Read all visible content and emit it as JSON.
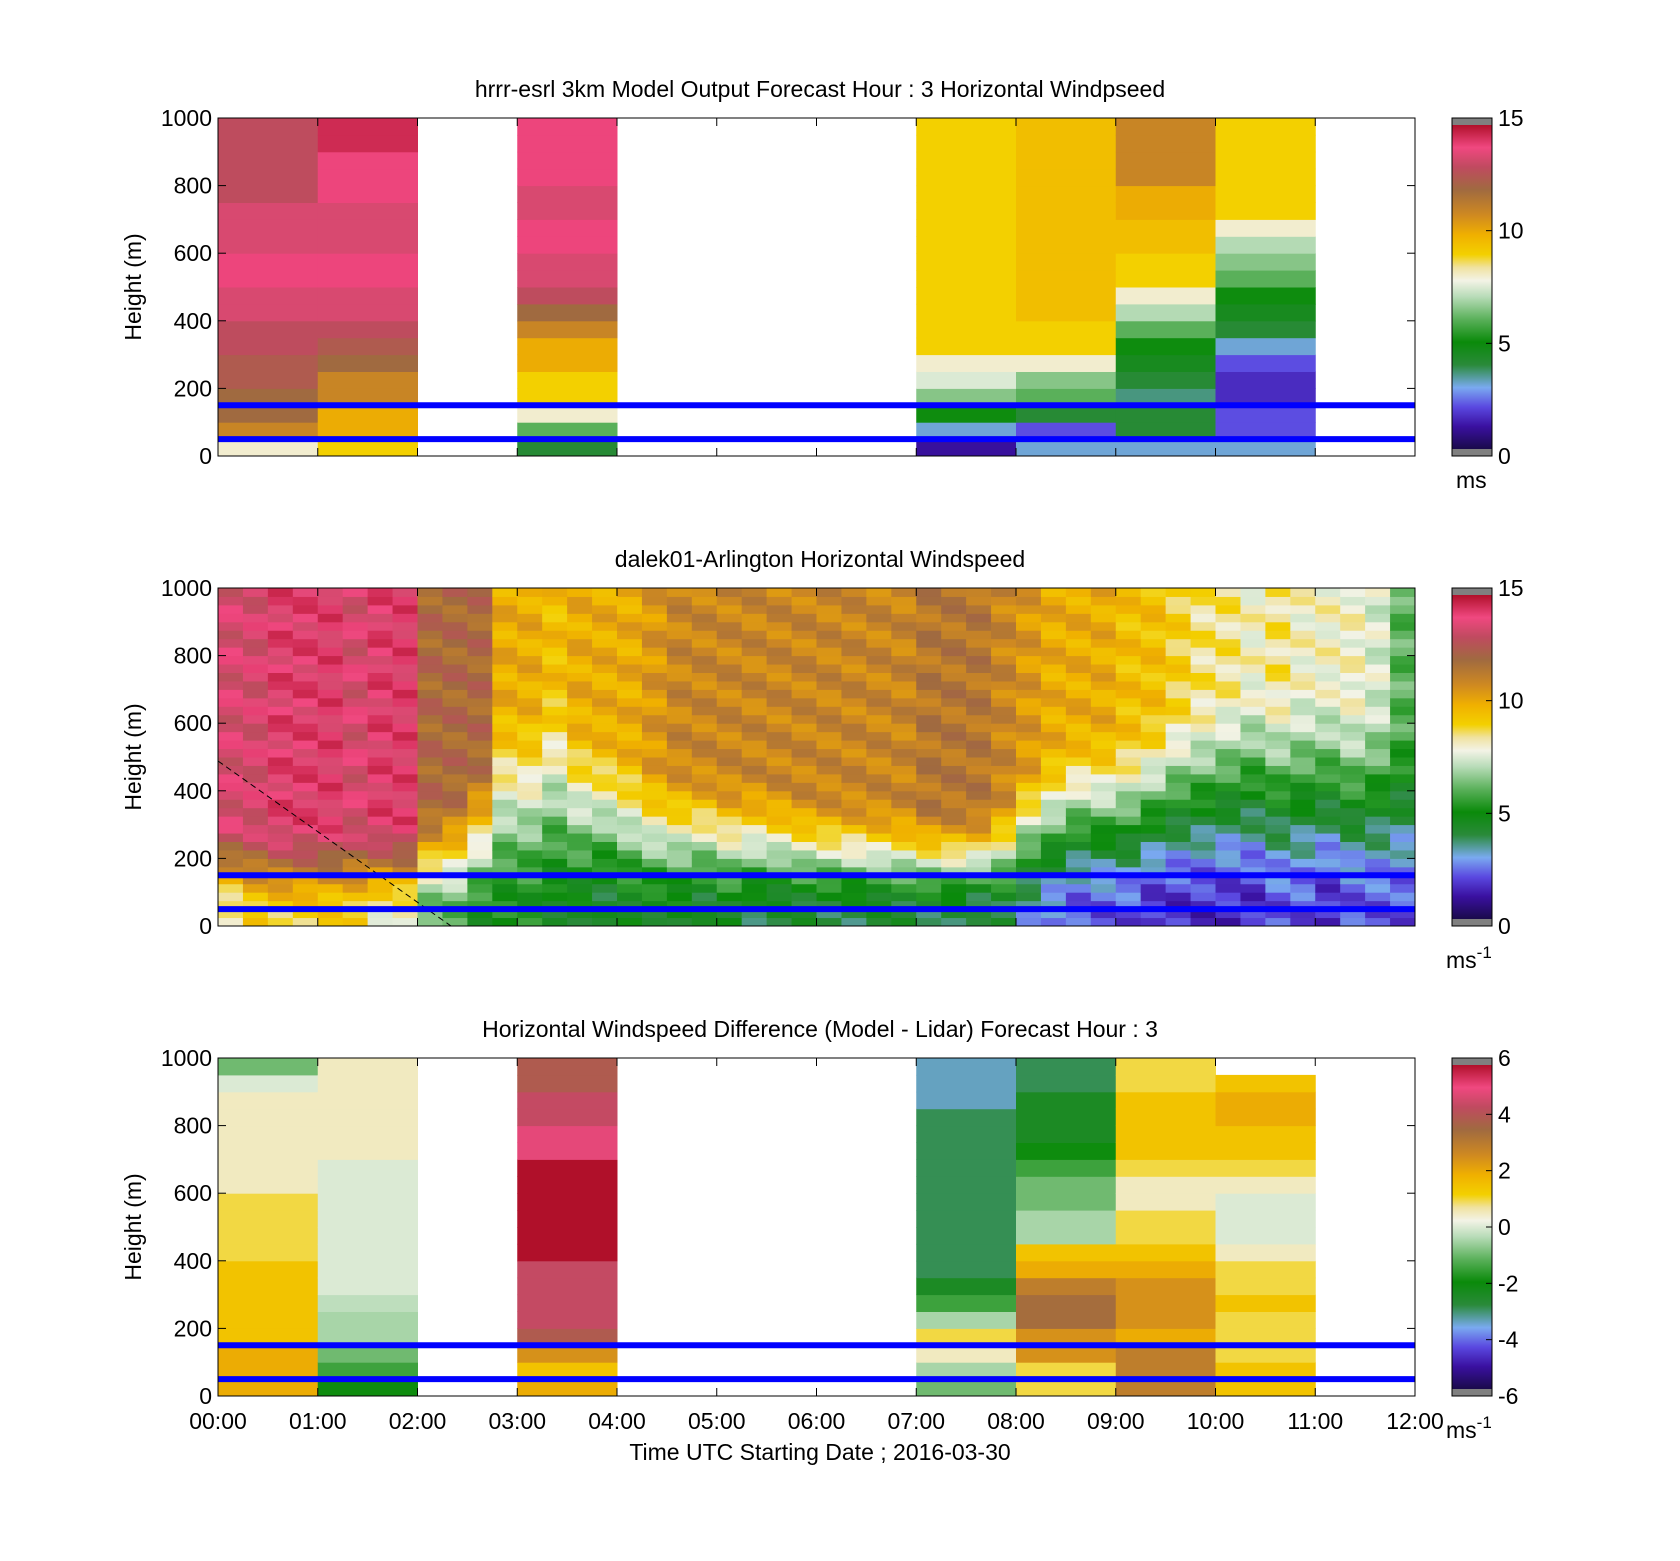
{
  "figure": {
    "xlabel": "Time UTC  Starting Date ; 2016-03-30",
    "time_ticks": [
      "00:00",
      "01:00",
      "02:00",
      "03:00",
      "04:00",
      "05:00",
      "06:00",
      "07:00",
      "08:00",
      "09:00",
      "10:00",
      "11:00",
      "12:00"
    ],
    "ylabel": "Height (m)",
    "height_ticks": [
      "0",
      "200",
      "400",
      "600",
      "800",
      "1000"
    ]
  },
  "colors": {
    "overlay_line": "#0000ff",
    "out_of_range": "#808080",
    "panel_bg": "#ffffff"
  },
  "chart_data": [
    {
      "type": "heatmap",
      "title": "hrrr-esrl 3km Model Output   Forecast Hour : 3 Horizontal Windpseed",
      "xlabel": "",
      "ylabel": "Height (m)",
      "x": [
        0,
        1,
        2,
        3,
        4,
        5,
        6,
        7,
        8,
        9,
        10,
        11
      ],
      "x_unit": "hour UTC",
      "y": [
        25,
        75,
        125,
        175,
        225,
        275,
        325,
        375,
        425,
        475,
        525,
        575,
        625,
        675,
        725,
        775,
        825,
        875,
        925,
        975
      ],
      "z_unit": "m s-1",
      "xlim": [
        0,
        12
      ],
      "ylim": [
        0,
        1000
      ],
      "colorbar": {
        "clim": [
          0,
          15
        ],
        "ticks": [
          "0",
          "5",
          "10",
          "15"
        ],
        "label": "ms"
      },
      "reference_lines": [
        50,
        150
      ],
      "columns": [
        {
          "x": 0,
          "values": [
            8,
            11,
            12,
            12,
            12.5,
            12.5,
            13,
            13,
            13.5,
            13.5,
            14,
            14,
            13.5,
            13.5,
            13.5,
            13,
            13,
            13,
            13,
            13
          ]
        },
        {
          "x": 1,
          "values": [
            9,
            10,
            10,
            11,
            11,
            12,
            12.5,
            13,
            13.5,
            13.5,
            14,
            14,
            13.5,
            13.5,
            13.5,
            14,
            14,
            14,
            14.5,
            14.5
          ]
        },
        {
          "x": 2,
          "values": []
        },
        {
          "x": 3,
          "values": [
            4,
            6,
            8,
            9,
            9,
            10,
            10,
            11,
            12,
            13,
            13.5,
            13.5,
            14,
            14,
            13.5,
            13.5,
            14,
            14,
            14,
            14
          ]
        },
        {
          "x": 4,
          "values": []
        },
        {
          "x": 5,
          "values": []
        },
        {
          "x": 6,
          "values": []
        },
        {
          "x": 7,
          "values": [
            1,
            3,
            5,
            6.5,
            7.5,
            8,
            9,
            9,
            9,
            9,
            9,
            9,
            9,
            9,
            9,
            9,
            9,
            9,
            9,
            9
          ]
        },
        {
          "x": 8,
          "values": [
            3,
            2,
            4,
            6,
            6.5,
            8,
            9,
            9,
            9.5,
            9.5,
            9.5,
            9.5,
            9.5,
            9.5,
            9.5,
            9.5,
            9.5,
            9.5,
            9.5,
            9.5
          ]
        },
        {
          "x": 9,
          "values": [
            3,
            4,
            4,
            3.5,
            4,
            4.5,
            5,
            6,
            7,
            8,
            9,
            9,
            9.5,
            9.5,
            10,
            10,
            11,
            11,
            11,
            11
          ]
        },
        {
          "x": 10,
          "values": [
            3,
            2,
            2,
            1.5,
            1.5,
            2,
            3,
            4,
            4.5,
            5,
            6,
            6.5,
            7,
            8,
            9,
            9,
            9,
            9,
            9,
            9
          ]
        },
        {
          "x": 11,
          "values": []
        }
      ]
    },
    {
      "type": "heatmap",
      "title": "dalek01-Arlington  Horizontal Windspeed",
      "xlabel": "",
      "ylabel": "Height (m)",
      "x": [
        0.125,
        0.375,
        0.625,
        0.875,
        1.125,
        1.375,
        1.625,
        1.875,
        2.125,
        2.375,
        2.625,
        2.875,
        3.125,
        3.375,
        3.625,
        3.875,
        4.125,
        4.375,
        4.625,
        4.875,
        5.125,
        5.375,
        5.625,
        5.875,
        6.125,
        6.375,
        6.625,
        6.875,
        7.125,
        7.375,
        7.625,
        7.875,
        8.125,
        8.375,
        8.625,
        8.875,
        9.125,
        9.375,
        9.625,
        9.875,
        10.125,
        10.375,
        10.625,
        10.875,
        11.125,
        11.375,
        11.625,
        11.875
      ],
      "x_unit": "hour UTC",
      "y_range": [
        0,
        1000
      ],
      "z_unit": "m s-1",
      "xlim": [
        0,
        12
      ],
      "ylim": [
        0,
        1000
      ],
      "colorbar": {
        "clim": [
          0,
          15
        ],
        "ticks": [
          "0",
          "5",
          "10",
          "15"
        ],
        "label": "ms",
        "label_superscript": "-1"
      },
      "reference_lines": [
        50,
        150
      ],
      "profiles": [
        {
          "x": 0.125,
          "surface": 8,
          "top": 13.5,
          "transition_m": 150
        },
        {
          "x": 0.375,
          "surface": 9,
          "top": 13.5,
          "transition_m": 150
        },
        {
          "x": 0.625,
          "surface": 9,
          "top": 14,
          "transition_m": 150
        },
        {
          "x": 0.875,
          "surface": 9,
          "top": 14,
          "transition_m": 150
        },
        {
          "x": 1.125,
          "surface": 9,
          "top": 14,
          "transition_m": 150
        },
        {
          "x": 1.375,
          "surface": 9,
          "top": 13.5,
          "transition_m": 150
        },
        {
          "x": 1.625,
          "surface": 8,
          "top": 14,
          "transition_m": 150
        },
        {
          "x": 1.875,
          "surface": 8,
          "top": 14,
          "transition_m": 150
        },
        {
          "x": 2.125,
          "surface": 6,
          "top": 12,
          "transition_m": 200
        },
        {
          "x": 2.375,
          "surface": 6,
          "top": 12,
          "transition_m": 250
        },
        {
          "x": 2.625,
          "surface": 5,
          "top": 12,
          "transition_m": 350
        },
        {
          "x": 2.875,
          "surface": 5,
          "top": 10,
          "transition_m": 550
        },
        {
          "x": 3.125,
          "surface": 5,
          "top": 10,
          "transition_m": 550
        },
        {
          "x": 3.375,
          "surface": 4.5,
          "top": 9.5,
          "transition_m": 600
        },
        {
          "x": 3.625,
          "surface": 4.5,
          "top": 10,
          "transition_m": 500
        },
        {
          "x": 3.875,
          "surface": 4,
          "top": 10,
          "transition_m": 450
        },
        {
          "x": 4.125,
          "surface": 4.5,
          "top": 10,
          "transition_m": 400
        },
        {
          "x": 4.375,
          "surface": 4.5,
          "top": 10.5,
          "transition_m": 350
        },
        {
          "x": 4.625,
          "surface": 4.5,
          "top": 11,
          "transition_m": 350
        },
        {
          "x": 4.875,
          "surface": 4,
          "top": 11,
          "transition_m": 330
        },
        {
          "x": 5.125,
          "surface": 4.5,
          "top": 11,
          "transition_m": 300
        },
        {
          "x": 5.375,
          "surface": 4,
          "top": 11,
          "transition_m": 300
        },
        {
          "x": 5.625,
          "surface": 4,
          "top": 11,
          "transition_m": 280
        },
        {
          "x": 5.875,
          "surface": 4,
          "top": 11,
          "transition_m": 250
        },
        {
          "x": 6.125,
          "surface": 4,
          "top": 11,
          "transition_m": 240
        },
        {
          "x": 6.375,
          "surface": 4,
          "top": 11,
          "transition_m": 230
        },
        {
          "x": 6.625,
          "surface": 4,
          "top": 11,
          "transition_m": 220
        },
        {
          "x": 6.875,
          "surface": 4,
          "top": 11,
          "transition_m": 210
        },
        {
          "x": 7.125,
          "surface": 4,
          "top": 11.5,
          "transition_m": 200
        },
        {
          "x": 7.375,
          "surface": 4,
          "top": 11.5,
          "transition_m": 200
        },
        {
          "x": 7.625,
          "surface": 3.5,
          "top": 11.5,
          "transition_m": 200
        },
        {
          "x": 7.875,
          "surface": 4,
          "top": 11,
          "transition_m": 250
        },
        {
          "x": 8.125,
          "surface": 3,
          "top": 10.5,
          "transition_m": 350
        },
        {
          "x": 8.375,
          "surface": 2.5,
          "top": 10,
          "transition_m": 400
        },
        {
          "x": 8.625,
          "surface": 2,
          "top": 10,
          "transition_m": 450
        },
        {
          "x": 8.875,
          "surface": 2,
          "top": 10,
          "transition_m": 450
        },
        {
          "x": 9.125,
          "surface": 2,
          "top": 9.5,
          "transition_m": 450
        },
        {
          "x": 9.375,
          "surface": 1.5,
          "top": 9.5,
          "transition_m": 500
        },
        {
          "x": 9.625,
          "surface": 1.5,
          "top": 9,
          "transition_m": 550
        },
        {
          "x": 9.875,
          "surface": 1.5,
          "top": 8.5,
          "transition_m": 550
        },
        {
          "x": 10.125,
          "surface": 1.5,
          "top": 8.5,
          "transition_m": 600
        },
        {
          "x": 10.375,
          "surface": 1.5,
          "top": 8,
          "transition_m": 600
        },
        {
          "x": 10.625,
          "surface": 2,
          "top": 8.5,
          "transition_m": 600
        },
        {
          "x": 10.875,
          "surface": 2,
          "top": 8,
          "transition_m": 600
        },
        {
          "x": 11.125,
          "surface": 1.5,
          "top": 8,
          "transition_m": 600
        },
        {
          "x": 11.375,
          "surface": 2,
          "top": 8,
          "transition_m": 550
        },
        {
          "x": 11.625,
          "surface": 2,
          "top": 7.5,
          "transition_m": 550
        },
        {
          "x": 11.875,
          "surface": 2,
          "top": 6,
          "transition_m": 500
        }
      ]
    },
    {
      "type": "heatmap",
      "title": "Horizontal Windspeed Difference (Model - Lidar) Forecast Hour : 3",
      "xlabel": "Time UTC  Starting Date ; 2016-03-30",
      "ylabel": "Height (m)",
      "x": [
        0,
        1,
        2,
        3,
        4,
        5,
        6,
        7,
        8,
        9,
        10,
        11
      ],
      "x_unit": "hour UTC",
      "y": [
        25,
        75,
        125,
        175,
        225,
        275,
        325,
        375,
        425,
        475,
        525,
        575,
        625,
        675,
        725,
        775,
        825,
        875,
        925,
        975
      ],
      "z_unit": "m s-1",
      "xlim": [
        0,
        12
      ],
      "ylim": [
        0,
        1000
      ],
      "colorbar": {
        "clim": [
          -6,
          6
        ],
        "ticks": [
          "-6",
          "-4",
          "-2",
          "0",
          "2",
          "4",
          "6"
        ],
        "label": "ms",
        "label_superscript": "-1"
      },
      "reference_lines": [
        50,
        150
      ],
      "columns": [
        {
          "x": 0,
          "values": [
            2,
            2,
            2,
            1.5,
            1.5,
            1.5,
            1.5,
            1.5,
            1,
            1,
            1,
            1,
            0.5,
            0.5,
            0.5,
            0.5,
            0.5,
            0.5,
            0,
            -1
          ]
        },
        {
          "x": 1,
          "values": [
            -2,
            -1.5,
            -1,
            -0.5,
            -0.5,
            -0.3,
            0,
            0,
            0,
            0,
            0,
            0,
            0,
            0,
            0.5,
            0.5,
            0.5,
            0.5,
            0.5,
            0.5
          ]
        },
        {
          "x": 2,
          "values": []
        },
        {
          "x": 3,
          "values": [
            2,
            1.5,
            2.5,
            4,
            4.5,
            4.5,
            4.5,
            4.5,
            7,
            7,
            7,
            7,
            7,
            7,
            5,
            5,
            4.5,
            4.5,
            4,
            4
          ]
        },
        {
          "x": 4,
          "values": []
        },
        {
          "x": 5,
          "values": []
        },
        {
          "x": 6,
          "values": []
        },
        {
          "x": 7,
          "values": [
            -1,
            -0.5,
            0.5,
            1,
            -0.5,
            -1.5,
            -2.5,
            -3,
            -3,
            -3,
            -3,
            -3,
            -3,
            -3,
            -3,
            -3,
            -3,
            -3.5,
            -3.5,
            -3.5
          ]
        },
        {
          "x": 8,
          "values": [
            1,
            1,
            2.5,
            2.5,
            3.5,
            3.5,
            3,
            2,
            1.5,
            -0.5,
            -0.5,
            -1,
            -1,
            -1.5,
            -2,
            -2.5,
            -2.5,
            -2.5,
            -3,
            -3
          ]
        },
        {
          "x": 9,
          "values": [
            3,
            3,
            3,
            2,
            2.5,
            2.5,
            2.5,
            2,
            1.5,
            1,
            1,
            0.5,
            0.5,
            1,
            1.5,
            1.5,
            1.5,
            1.5,
            1,
            1
          ]
        },
        {
          "x": 10,
          "values": [
            1.5,
            1.5,
            1,
            1,
            1,
            1.5,
            1,
            1,
            0.5,
            0,
            0,
            0,
            0.5,
            1,
            1.5,
            1.5,
            2,
            2,
            1.5,
            null
          ]
        },
        {
          "x": 11,
          "values": []
        }
      ]
    }
  ]
}
